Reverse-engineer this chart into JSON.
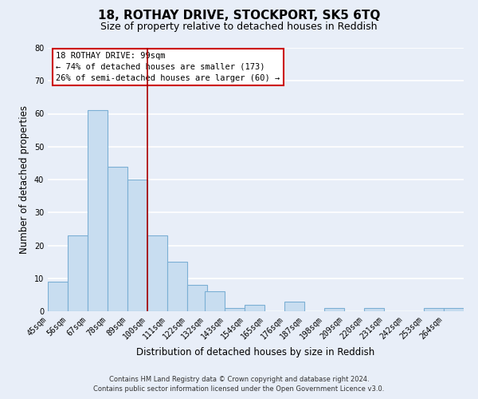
{
  "title": "18, ROTHAY DRIVE, STOCKPORT, SK5 6TQ",
  "subtitle": "Size of property relative to detached houses in Reddish",
  "xlabel": "Distribution of detached houses by size in Reddish",
  "ylabel": "Number of detached properties",
  "bin_labels": [
    "45sqm",
    "56sqm",
    "67sqm",
    "78sqm",
    "89sqm",
    "100sqm",
    "111sqm",
    "122sqm",
    "132sqm",
    "143sqm",
    "154sqm",
    "165sqm",
    "176sqm",
    "187sqm",
    "198sqm",
    "209sqm",
    "220sqm",
    "231sqm",
    "242sqm",
    "253sqm",
    "264sqm"
  ],
  "bin_starts": [
    45,
    56,
    67,
    78,
    89,
    100,
    111,
    122,
    132,
    143,
    154,
    165,
    176,
    187,
    198,
    209,
    220,
    231,
    242,
    253,
    264
  ],
  "bin_width": 11,
  "counts": [
    9,
    23,
    61,
    44,
    40,
    23,
    15,
    8,
    6,
    1,
    2,
    0,
    3,
    0,
    1,
    0,
    1,
    0,
    0,
    1,
    1
  ],
  "bar_color": "#c8ddf0",
  "bar_edge_color": "#7bafd4",
  "highlight_x": 100,
  "highlight_line_color": "#aa0000",
  "ylim": [
    0,
    80
  ],
  "yticks": [
    0,
    10,
    20,
    30,
    40,
    50,
    60,
    70,
    80
  ],
  "xlim_left": 45,
  "xlim_right": 275,
  "annotation_line1": "18 ROTHAY DRIVE: 99sqm",
  "annotation_line2": "← 74% of detached houses are smaller (173)",
  "annotation_line3": "26% of semi-detached houses are larger (60) →",
  "annotation_bg": "#ffffff",
  "annotation_edge": "#cc0000",
  "footer_line1": "Contains HM Land Registry data © Crown copyright and database right 2024.",
  "footer_line2": "Contains public sector information licensed under the Open Government Licence v3.0.",
  "background_color": "#e8eef8",
  "grid_color": "#ffffff",
  "title_fontsize": 11,
  "subtitle_fontsize": 9,
  "axis_label_fontsize": 8.5,
  "tick_fontsize": 7,
  "annotation_fontsize": 7.5,
  "footer_fontsize": 6
}
